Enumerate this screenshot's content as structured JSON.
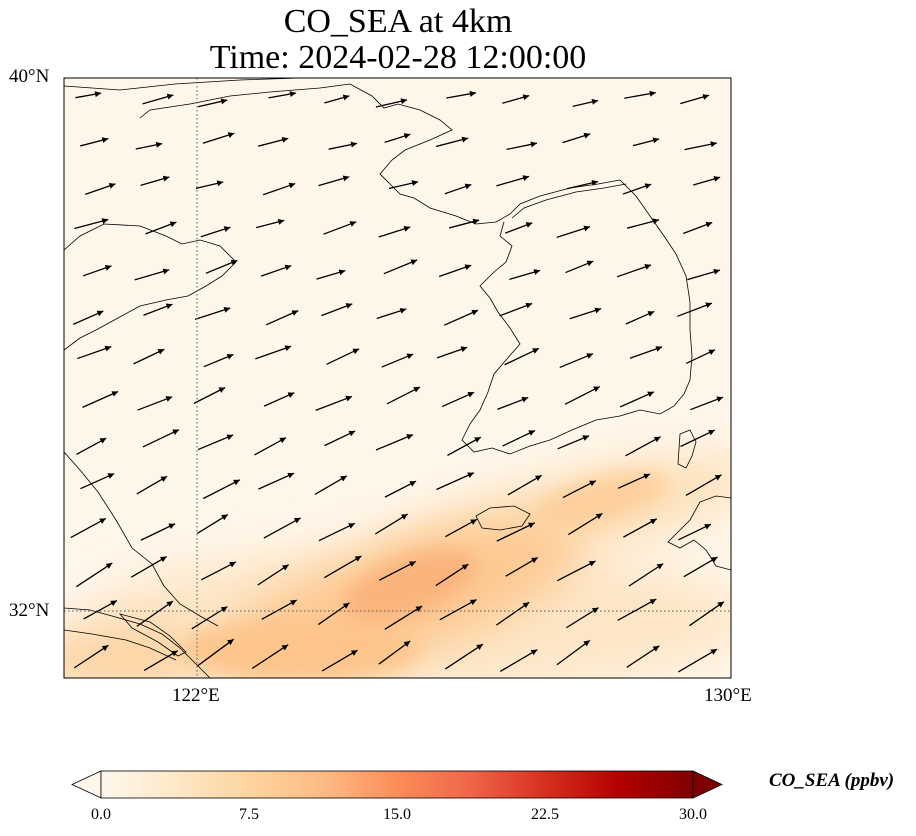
{
  "title": {
    "line1": "CO_SEA at 4km",
    "line2": "Time: 2024-02-28 12:00:00"
  },
  "map": {
    "projection": "PlateCarree",
    "lon_range": [
      120.0,
      130.0
    ],
    "lat_range": [
      31.0,
      40.0
    ],
    "gridlines": {
      "style": "dotted",
      "lons": [
        122
      ],
      "lats": [
        32
      ]
    },
    "colormap": "OrRd",
    "field_description": "low CO concentrations (about 0-3 ppbv) over most of the domain, with a band of higher values (about 6-11 ppbv) over the East China Sea south of Jeju Island, strongest near 32.5°N 125°E",
    "wind_vectors": "uniform westerly to west-southwesterly winds across the domain"
  },
  "axes": {
    "x_ticks": [
      {
        "value": 122,
        "label": "122°E"
      },
      {
        "value": 130,
        "label": "130°E"
      }
    ],
    "y_ticks": [
      {
        "value": 40,
        "label": "40°N"
      },
      {
        "value": 32,
        "label": "32°N"
      }
    ]
  },
  "colorbar": {
    "label": "CO_SEA (ppbv)",
    "min": 0.0,
    "max": 30.0,
    "extend": "both",
    "ticks": [
      "0.0",
      "7.5",
      "15.0",
      "22.5",
      "30.0"
    ],
    "tick_values": [
      0.0,
      7.5,
      15.0,
      22.5,
      30.0
    ],
    "colors": [
      "#fff7ec",
      "#fee8c8",
      "#fdd49e",
      "#fdbb84",
      "#fc8d59",
      "#ef6548",
      "#d7301f",
      "#b30000",
      "#7f0000"
    ]
  },
  "colors": {
    "coastline": "#000000",
    "arrow": "#000000",
    "gridline": "#555555"
  }
}
